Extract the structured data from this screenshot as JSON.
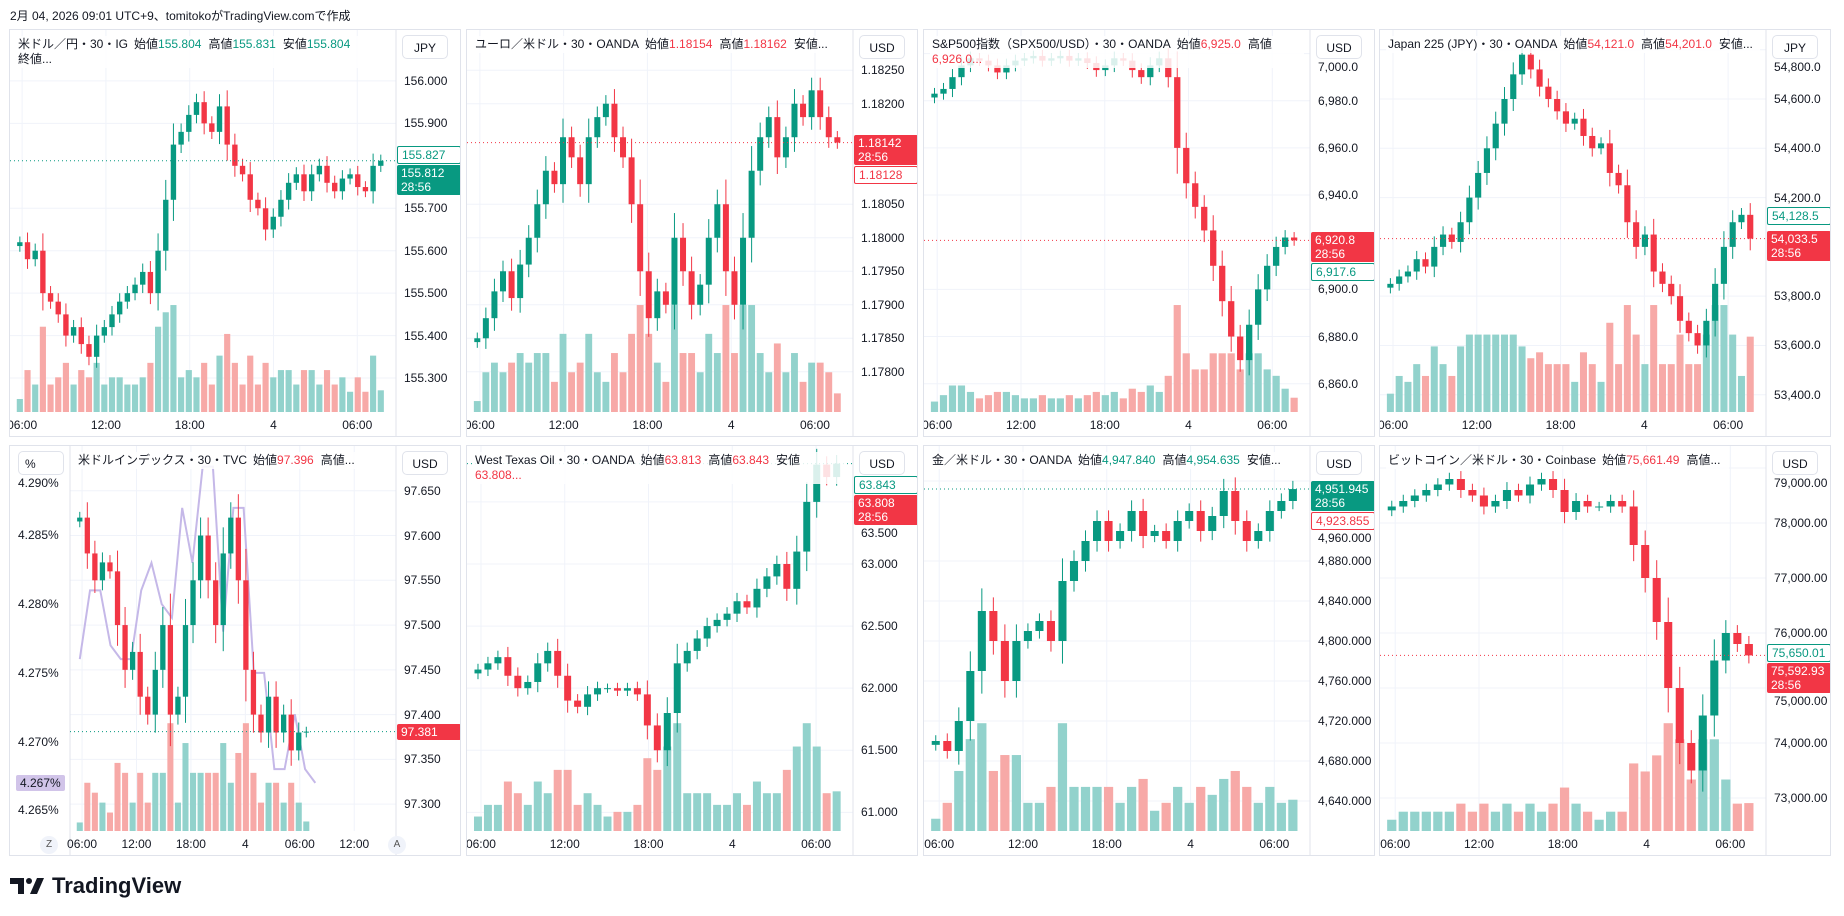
{
  "caption": "2月 04, 2026 09:01 UTC+9、tomitokoがTradingView.comで作成",
  "brand": "TradingView",
  "colors": {
    "up": "#089981",
    "down": "#f23645",
    "up_vol": "#92d2cc",
    "down_vol": "#f7a9a7",
    "yield_line": "#c5b8e8",
    "yield_tag": "#d1c4e9"
  },
  "chart_data": [
    {
      "type": "candlestick",
      "currency": "JPY",
      "header": {
        "symbol": "米ドル／円・30・IG",
        "color": "up",
        "fields": [
          {
            "k": "始値",
            "v": "155.804"
          },
          {
            "k": "高値",
            "v": "155.831"
          },
          {
            "k": "安値",
            "v": "155.804"
          },
          {
            "k": "終値...",
            "v": ""
          }
        ]
      },
      "ylim": [
        155.22,
        156.12
      ],
      "yticks": [
        "156.000",
        "155.900",
        "155.700",
        "155.600",
        "155.500",
        "155.400",
        "155.300"
      ],
      "xlabels": [
        "06:00",
        "12:00",
        "18:00",
        "4",
        "06:00"
      ],
      "closes": [
        155.62,
        155.58,
        155.6,
        155.5,
        155.48,
        155.45,
        155.4,
        155.42,
        155.38,
        155.35,
        155.4,
        155.42,
        155.45,
        155.48,
        155.5,
        155.52,
        155.55,
        155.5,
        155.6,
        155.72,
        155.85,
        155.88,
        155.92,
        155.95,
        155.9,
        155.88,
        155.94,
        155.85,
        155.8,
        155.78,
        155.72,
        155.7,
        155.65,
        155.68,
        155.72,
        155.76,
        155.78,
        155.74,
        155.78,
        155.8,
        155.76,
        155.74,
        155.77,
        155.78,
        155.75,
        155.74,
        155.8,
        155.812
      ],
      "tags": [
        {
          "text": "155.827",
          "value": 155.827,
          "style": "outline",
          "color": "up"
        },
        {
          "text": "155.812",
          "sub": "28:56",
          "value": 155.812,
          "style": "fill",
          "color": "up"
        }
      ]
    },
    {
      "type": "candlestick",
      "currency": "USD",
      "header": {
        "symbol": "ユーロ／米ドル・30・OANDA",
        "color": "down",
        "fields": [
          {
            "k": "始値",
            "v": "1.18154"
          },
          {
            "k": "高値",
            "v": "1.18162"
          },
          {
            "k": "安値...",
            "v": ""
          }
        ]
      },
      "ylim": [
        1.1774,
        1.1831
      ],
      "yticks": [
        "1.18250",
        "1.18200",
        "1.18050",
        "1.18000",
        "1.17950",
        "1.17900",
        "1.17850",
        "1.17800"
      ],
      "xlabels": [
        "06:00",
        "12:00",
        "18:00",
        "4",
        "06:00"
      ],
      "closes": [
        1.1785,
        1.1788,
        1.1792,
        1.1795,
        1.1791,
        1.1796,
        1.18,
        1.1805,
        1.181,
        1.1808,
        1.1815,
        1.1812,
        1.1808,
        1.1815,
        1.1818,
        1.182,
        1.1815,
        1.1812,
        1.1805,
        1.1795,
        1.1788,
        1.1792,
        1.179,
        1.18,
        1.1795,
        1.179,
        1.1793,
        1.18,
        1.1805,
        1.1795,
        1.179,
        1.18,
        1.181,
        1.1815,
        1.1818,
        1.1812,
        1.1815,
        1.182,
        1.1818,
        1.1822,
        1.1818,
        1.1815,
        1.18142
      ],
      "tags": [
        {
          "text": "1.18142",
          "sub": "28:56",
          "value": 1.18142,
          "style": "fill",
          "color": "down"
        },
        {
          "text": "1.18128",
          "value": 1.18128,
          "style": "outline",
          "color": "down"
        }
      ]
    },
    {
      "type": "candlestick",
      "currency": "USD",
      "header": {
        "symbol": "S&P500指数（SPX500/USD）・30・OANDA",
        "color": "down",
        "fields": [
          {
            "k": "始値",
            "v": "6,925.0"
          },
          {
            "k": "高値",
            "v": "6,926.0..."
          }
        ]
      },
      "ylim": [
        6848,
        7010
      ],
      "yticks": [
        "7,000.0",
        "6,980.0",
        "6,960.0",
        "6,940.0",
        "6,900.0",
        "6,880.0",
        "6,860.0"
      ],
      "xlabels": [
        "06:00",
        "12:00",
        "18:00",
        "4",
        "06:00"
      ],
      "closes": [
        6983,
        6985,
        6990,
        6995,
        6998,
        6997,
        6995,
        6992,
        6995,
        6997,
        6998,
        6999,
        6997,
        6998,
        6999,
        6997,
        6998,
        6996,
        6993,
        6995,
        6998,
        6997,
        6993,
        6990,
        6995,
        6998,
        6990,
        6960,
        6945,
        6935,
        6925,
        6910,
        6895,
        6880,
        6870,
        6885,
        6900,
        6910,
        6918,
        6922,
        6920.8
      ],
      "tags": [
        {
          "text": "6,920.8",
          "sub": "28:56",
          "value": 6920.8,
          "style": "fill",
          "color": "down"
        },
        {
          "text": "6,917.6",
          "value": 6917.6,
          "style": "outline",
          "color": "up"
        }
      ]
    },
    {
      "type": "candlestick",
      "currency": "JPY",
      "header": {
        "symbol": "Japan 225 (JPY)・30・OANDA",
        "color": "down",
        "fields": [
          {
            "k": "始値",
            "v": "54,121.0"
          },
          {
            "k": "高値",
            "v": "54,201.0"
          },
          {
            "k": "安値...",
            "v": ""
          }
        ]
      },
      "ylim": [
        53330,
        54880
      ],
      "yticks": [
        "54,800.0",
        "54,600.0",
        "54,400.0",
        "54,200.0",
        "53,800.0",
        "53,600.0",
        "53,400.0"
      ],
      "xlabels": [
        "06:00",
        "12:00",
        "18:00",
        "4",
        "06:00"
      ],
      "closes": [
        53850,
        53880,
        53900,
        53950,
        53920,
        54000,
        54050,
        54020,
        54100,
        54200,
        54300,
        54400,
        54500,
        54600,
        54700,
        54780,
        54720,
        54650,
        54600,
        54550,
        54500,
        54520,
        54450,
        54400,
        54420,
        54300,
        54250,
        54100,
        54000,
        54050,
        53900,
        53850,
        53800,
        53700,
        53650,
        53600,
        53700,
        53850,
        54000,
        54100,
        54130,
        54033.5
      ],
      "tags": [
        {
          "text": "54,128.5",
          "value": 54128.5,
          "style": "outline",
          "color": "up"
        },
        {
          "text": "54,033.5",
          "sub": "28:56",
          "value": 54033.5,
          "style": "fill",
          "color": "down"
        }
      ]
    },
    {
      "type": "candlestick",
      "currency": "USD",
      "left_unit": "%",
      "header": {
        "symbol": "米ドルインデックス・30・TVC",
        "color": "down",
        "fields": [
          {
            "k": "始値",
            "v": "97.396"
          },
          {
            "k": "高値...",
            "v": ""
          }
        ]
      },
      "ylim": [
        97.27,
        97.7
      ],
      "yticks": [
        "97.650",
        "97.600",
        "97.550",
        "97.500",
        "97.450",
        "97.400",
        "97.350",
        "97.300"
      ],
      "left_ylim": [
        4.2635,
        4.2915
      ],
      "left_yticks": [
        "4.290%",
        "4.285%",
        "4.280%",
        "4.275%",
        "4.270%",
        "4.265%"
      ],
      "xlabels": [
        "06:00",
        "12:00",
        "18:00",
        "4",
        "06:00",
        "12:00"
      ],
      "closes": [
        97.62,
        97.58,
        97.55,
        97.57,
        97.56,
        97.5,
        97.45,
        97.47,
        97.42,
        97.4,
        97.45,
        97.5,
        97.4,
        97.42,
        97.5,
        97.55,
        97.6,
        97.55,
        97.5,
        97.58,
        97.62,
        97.55,
        97.45,
        97.4,
        97.38,
        97.42,
        97.38,
        97.4,
        97.36,
        97.38,
        97.381
      ],
      "yield_line": [
        4.276,
        4.281,
        4.281,
        4.277,
        4.276,
        4.276,
        4.281,
        4.283,
        4.28,
        4.279,
        4.287,
        4.283,
        4.29,
        4.29,
        4.278,
        4.287,
        4.287,
        4.275,
        4.275,
        4.268,
        4.268,
        4.272,
        4.268,
        4.267
      ],
      "tags": [
        {
          "text": "97.381",
          "value": 97.381,
          "style": "fill",
          "color": "down"
        }
      ],
      "left_tag": {
        "text": "4.267%",
        "value": 4.267
      },
      "bottom_buttons": [
        "Z",
        "A"
      ]
    },
    {
      "type": "candlestick",
      "currency": "USD",
      "header": {
        "symbol": "West Texas Oil・30・OANDA",
        "color": "down",
        "fields": [
          {
            "k": "始値",
            "v": "63.813"
          },
          {
            "k": "高値",
            "v": "63.843"
          },
          {
            "k": "安値",
            "v": "63.808..."
          }
        ]
      },
      "ylim": [
        60.85,
        63.95
      ],
      "yticks": [
        "63.500",
        "63.000",
        "62.500",
        "62.000",
        "61.500",
        "61.000"
      ],
      "xlabels": [
        "06:00",
        "12:00",
        "18:00",
        "4",
        "06:00"
      ],
      "closes": [
        62.15,
        62.2,
        62.25,
        62.1,
        62.0,
        62.05,
        62.2,
        62.3,
        62.1,
        61.9,
        61.85,
        61.95,
        62.0,
        62.0,
        61.98,
        62.0,
        61.95,
        61.7,
        61.5,
        61.8,
        62.2,
        62.3,
        62.4,
        62.5,
        62.55,
        62.6,
        62.7,
        62.65,
        62.8,
        62.9,
        63.0,
        62.8,
        63.1,
        63.5,
        63.8,
        63.7,
        63.808
      ],
      "tags": [
        {
          "text": "63.843",
          "value": 63.843,
          "style": "outline",
          "color": "up"
        },
        {
          "text": "63.808",
          "sub": "28:56",
          "value": 63.808,
          "style": "fill",
          "color": "down"
        }
      ]
    },
    {
      "type": "candlestick",
      "currency": "USD",
      "header": {
        "symbol": "金／米ドル・30・OANDA",
        "color": "up",
        "fields": [
          {
            "k": "始値",
            "v": "4,947.840"
          },
          {
            "k": "高値",
            "v": "4,954.635"
          },
          {
            "k": "安値...",
            "v": ""
          }
        ]
      },
      "ylim": [
        4610,
        4995
      ],
      "yticks": [
        "4,960.000",
        "4,880.000",
        "4,840.000",
        "4,800.000",
        "4,760.000",
        "4,720.000",
        "4,680.000",
        "4,640.000"
      ],
      "xlabels": [
        "06:00",
        "12:00",
        "18:00",
        "4",
        "06:00"
      ],
      "closes": [
        4700,
        4690,
        4720,
        4770,
        4830,
        4800,
        4760,
        4800,
        4810,
        4820,
        4800,
        4860,
        4880,
        4900,
        4920,
        4900,
        4910,
        4930,
        4905,
        4910,
        4900,
        4920,
        4930,
        4910,
        4925,
        4950,
        4920,
        4900,
        4910,
        4930,
        4940,
        4951.945
      ],
      "tags": [
        {
          "text": "4,951.945",
          "sub": "28:56",
          "value": 4951.945,
          "style": "fill",
          "color": "up"
        },
        {
          "text": "4,923.855",
          "value": 4923.855,
          "style": "outline",
          "color": "down"
        }
      ]
    },
    {
      "type": "candlestick",
      "currency": "USD",
      "header": {
        "symbol": "ビットコイン／米ドル・30・Coinbase",
        "color": "down",
        "fields": [
          {
            "k": "始値",
            "v": "75,661.49"
          },
          {
            "k": "高値...",
            "v": ""
          }
        ]
      },
      "ylim": [
        72400,
        79400
      ],
      "yticks": [
        "79,000.00",
        "78,000.00",
        "77,000.00",
        "76,000.00",
        "75,000.00",
        "74,000.00",
        "73,000.00"
      ],
      "xlabels": [
        "06:00",
        "12:00",
        "18:00",
        "4",
        "06:00"
      ],
      "closes": [
        78300,
        78400,
        78500,
        78600,
        78700,
        78800,
        78600,
        78500,
        78300,
        78400,
        78600,
        78500,
        78700,
        78800,
        78600,
        78200,
        78400,
        78300,
        78300,
        78400,
        78300,
        77600,
        77000,
        76200,
        75000,
        74000,
        73500,
        74500,
        75500,
        76000,
        75800,
        75592.93
      ],
      "tags": [
        {
          "text": "75,650.01",
          "value": 75650.01,
          "style": "outline",
          "color": "up"
        },
        {
          "text": "75,592.93",
          "sub": "28:56",
          "value": 75592.93,
          "style": "fill",
          "color": "down"
        }
      ]
    }
  ]
}
